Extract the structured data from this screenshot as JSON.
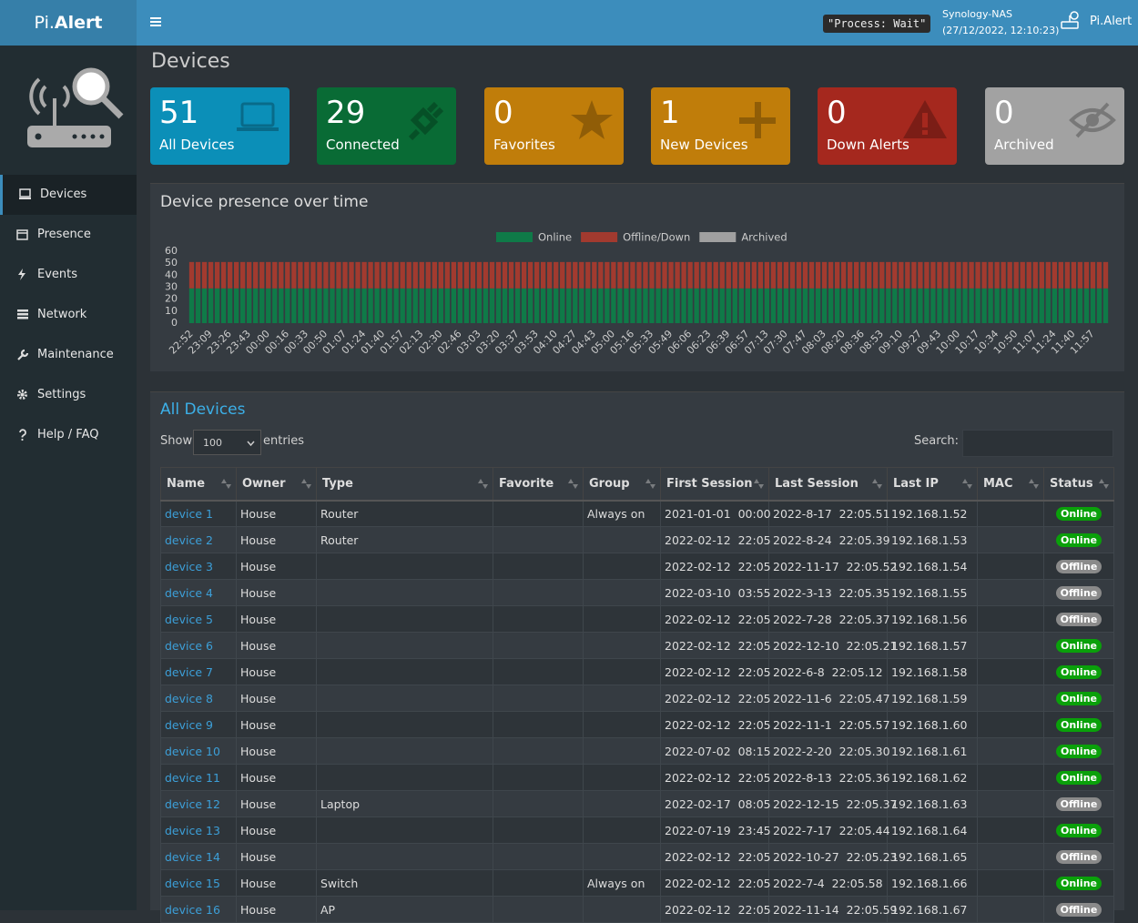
{
  "header": {
    "logo_prefix": "Pi.",
    "logo_suffix": "Alert",
    "process": "\"Process: Wait\"",
    "host": "Synology-NAS",
    "time": "(27/12/2022, 12:10:23)",
    "user": "Pi.Alert"
  },
  "sidebar": {
    "items": [
      "Devices",
      "Presence",
      "Events",
      "Network",
      "Maintenance",
      "Settings",
      "Help / FAQ"
    ]
  },
  "page_title": "Devices",
  "cards": [
    {
      "value": 51,
      "label": "All Devices",
      "color": "#0b8fb8"
    },
    {
      "value": 29,
      "label": "Connected",
      "color": "#096b35"
    },
    {
      "value": 0,
      "label": "Favorites",
      "color": "#c07d0a"
    },
    {
      "value": 1,
      "label": "New Devices",
      "color": "#c07d0a"
    },
    {
      "value": 0,
      "label": "Down Alerts",
      "color": "#a5281e"
    },
    {
      "value": 0,
      "label": "Archived",
      "color": "#a2a2a2"
    }
  ],
  "chart_data": {
    "type": "bar",
    "stacked": true,
    "title": "Device presence over time",
    "categories": [
      "22:52",
      null,
      null,
      "23:09",
      null,
      null,
      "23:26",
      null,
      null,
      "23:43",
      null,
      null,
      "00:00",
      null,
      null,
      "00:16",
      null,
      null,
      "00:33",
      null,
      null,
      "00:50",
      null,
      null,
      "01:07",
      null,
      null,
      "01:24",
      null,
      null,
      "01:40",
      null,
      null,
      "01:57",
      null,
      null,
      "02:13",
      null,
      null,
      "02:30",
      null,
      null,
      "02:46",
      null,
      null,
      "03:03",
      null,
      null,
      "03:20",
      null,
      null,
      "03:37",
      null,
      null,
      "03:53",
      null,
      null,
      "04:10",
      null,
      null,
      "04:27",
      null,
      null,
      "04:43",
      null,
      null,
      "05:00",
      null,
      null,
      "05:16",
      null,
      null,
      "05:33",
      null,
      null,
      "05:49",
      null,
      null,
      "06:06",
      null,
      null,
      "06:23",
      null,
      null,
      "06:39",
      null,
      null,
      "06:57",
      null,
      null,
      "07:13",
      null,
      null,
      "07:30",
      null,
      null,
      "07:47",
      null,
      null,
      "08:03",
      null,
      null,
      "08:20",
      null,
      null,
      "08:36",
      null,
      null,
      "08:53",
      null,
      null,
      "09:10",
      null,
      null,
      "09:27",
      null,
      null,
      "09:43",
      null,
      null,
      "10:00",
      null,
      null,
      "10:17",
      null,
      null,
      "10:34",
      null,
      null,
      "10:50",
      null,
      null,
      "11:07",
      null,
      null,
      "11:24",
      null,
      null,
      "11:40",
      null,
      null,
      "11:57",
      null,
      null
    ],
    "series": [
      {
        "name": "Online",
        "color": "#0f7a48",
        "values": [
          29,
          29,
          29,
          29,
          29,
          29,
          29,
          29,
          29,
          29,
          29,
          29,
          29,
          29,
          29,
          29,
          29,
          29,
          29,
          29,
          29,
          29,
          29,
          29,
          29,
          29,
          29,
          29,
          29,
          29,
          29,
          29,
          29,
          29,
          29,
          29,
          29,
          29,
          29,
          29,
          29,
          29,
          29,
          29,
          29,
          29,
          29,
          29,
          29,
          29,
          29,
          29,
          29,
          29,
          29,
          29,
          29,
          29,
          29,
          29,
          29,
          29,
          29,
          29,
          29,
          29,
          29,
          29,
          29,
          29,
          29,
          29,
          29,
          29,
          29,
          29,
          29,
          29,
          29,
          29,
          29,
          29,
          29,
          29,
          29,
          29,
          29,
          29,
          29,
          29,
          29,
          29,
          29,
          29,
          29,
          29,
          29,
          29,
          29,
          29,
          29,
          29,
          29,
          29,
          29,
          29,
          29,
          29,
          29,
          29,
          29,
          29,
          29,
          29,
          29,
          29,
          29,
          29,
          29,
          29,
          29,
          29,
          29,
          29,
          29,
          29,
          29,
          29,
          29,
          29,
          29,
          29,
          29,
          29,
          29,
          29,
          29,
          29,
          29,
          29,
          29,
          29,
          29,
          29
        ]
      },
      {
        "name": "Offline/Down",
        "color": "#a23a2f",
        "values": [
          22,
          22,
          22,
          22,
          22,
          22,
          22,
          22,
          22,
          22,
          22,
          22,
          22,
          22,
          22,
          22,
          22,
          22,
          22,
          22,
          22,
          22,
          22,
          22,
          22,
          22,
          22,
          22,
          22,
          22,
          22,
          22,
          22,
          22,
          22,
          22,
          22,
          22,
          22,
          22,
          22,
          22,
          22,
          22,
          22,
          22,
          22,
          22,
          22,
          22,
          22,
          22,
          22,
          22,
          22,
          22,
          22,
          22,
          22,
          22,
          22,
          22,
          22,
          22,
          22,
          22,
          22,
          22,
          22,
          22,
          22,
          22,
          22,
          22,
          22,
          22,
          22,
          22,
          22,
          22,
          22,
          22,
          22,
          22,
          22,
          22,
          22,
          22,
          22,
          22,
          22,
          22,
          22,
          22,
          22,
          22,
          22,
          22,
          22,
          22,
          22,
          22,
          22,
          22,
          22,
          22,
          22,
          22,
          22,
          22,
          22,
          22,
          22,
          22,
          22,
          22,
          22,
          22,
          22,
          22,
          22,
          22,
          22,
          22,
          22,
          22,
          22,
          22,
          22,
          22,
          22,
          22,
          22,
          22,
          22,
          22,
          22,
          22,
          22,
          22,
          22,
          22,
          22,
          22
        ]
      },
      {
        "name": "Archived",
        "color": "#a0a0a0",
        "values": [
          0,
          0,
          0,
          0,
          0,
          0,
          0,
          0,
          0,
          0,
          0,
          0,
          0,
          0,
          0,
          0,
          0,
          0,
          0,
          0,
          0,
          0,
          0,
          0,
          0,
          0,
          0,
          0,
          0,
          0,
          0,
          0,
          0,
          0,
          0,
          0,
          0,
          0,
          0,
          0,
          0,
          0,
          0,
          0,
          0,
          0,
          0,
          0,
          0,
          0,
          0,
          0,
          0,
          0,
          0,
          0,
          0,
          0,
          0,
          0,
          0,
          0,
          0,
          0,
          0,
          0,
          0,
          0,
          0,
          0,
          0,
          0,
          0,
          0,
          0,
          0,
          0,
          0,
          0,
          0,
          0,
          0,
          0,
          0,
          0,
          0,
          0,
          0,
          0,
          0,
          0,
          0,
          0,
          0,
          0,
          0,
          0,
          0,
          0,
          0,
          0,
          0,
          0,
          0,
          0,
          0,
          0,
          0,
          0,
          0,
          0,
          0,
          0,
          0,
          0,
          0,
          0,
          0,
          0,
          0,
          0,
          0,
          0,
          0,
          0,
          0,
          0,
          0,
          0,
          0,
          0,
          0,
          0,
          0,
          0,
          0,
          0,
          0,
          0,
          0,
          0,
          0,
          0,
          0
        ]
      }
    ],
    "ylim": [
      0,
      60
    ],
    "yticks": [
      0,
      10,
      20,
      30,
      40,
      50,
      60
    ]
  },
  "table": {
    "title": "All Devices",
    "show": "Show",
    "page_size": "100",
    "entries": "entries",
    "search": "Search:",
    "columns": [
      "Name",
      "Owner",
      "Type",
      "Favorite",
      "Group",
      "First Session",
      "Last Session",
      "Last IP",
      "MAC",
      "Status"
    ],
    "status_styles": {
      "Online": "#0aa00a",
      "Offline": "#8a8a8a"
    },
    "rows": [
      [
        "device 1",
        "House",
        "Router",
        null,
        "Always on",
        "2021-01-01  00:00",
        "2022-8-17  22:05.51",
        "192.168.1.52",
        null,
        "Online"
      ],
      [
        "device 2",
        "House",
        "Router",
        null,
        null,
        "2022-02-12  22:05",
        "2022-8-24  22:05.39",
        "192.168.1.53",
        null,
        "Online"
      ],
      [
        "device 3",
        "House",
        null,
        null,
        null,
        "2022-02-12  22:05",
        "2022-11-17  22:05.52",
        "192.168.1.54",
        null,
        "Offline"
      ],
      [
        "device 4",
        "House",
        null,
        null,
        null,
        "2022-03-10  03:55",
        "2022-3-13  22:05.35",
        "192.168.1.55",
        null,
        "Offline"
      ],
      [
        "device 5",
        "House",
        null,
        null,
        null,
        "2022-02-12  22:05",
        "2022-7-28  22:05.37",
        "192.168.1.56",
        null,
        "Offline"
      ],
      [
        "device 6",
        "House",
        null,
        null,
        null,
        "2022-02-12  22:05",
        "2022-12-10  22:05.21",
        "192.168.1.57",
        null,
        "Online"
      ],
      [
        "device 7",
        "House",
        null,
        null,
        null,
        "2022-02-12  22:05",
        "2022-6-8  22:05.12",
        "192.168.1.58",
        null,
        "Online"
      ],
      [
        "device 8",
        "House",
        null,
        null,
        null,
        "2022-02-12  22:05",
        "2022-11-6  22:05.47",
        "192.168.1.59",
        null,
        "Online"
      ],
      [
        "device 9",
        "House",
        null,
        null,
        null,
        "2022-02-12  22:05",
        "2022-11-1  22:05.57",
        "192.168.1.60",
        null,
        "Online"
      ],
      [
        "device 10",
        "House",
        null,
        null,
        null,
        "2022-07-02  08:15",
        "2022-2-20  22:05.30",
        "192.168.1.61",
        null,
        "Online"
      ],
      [
        "device 11",
        "House",
        null,
        null,
        null,
        "2022-02-12  22:05",
        "2022-8-13  22:05.36",
        "192.168.1.62",
        null,
        "Online"
      ],
      [
        "device 12",
        "House",
        "Laptop",
        null,
        null,
        "2022-02-17  08:05",
        "2022-12-15  22:05.37",
        "192.168.1.63",
        null,
        "Offline"
      ],
      [
        "device 13",
        "House",
        null,
        null,
        null,
        "2022-07-19  23:45",
        "2022-7-17  22:05.44",
        "192.168.1.64",
        null,
        "Online"
      ],
      [
        "device 14",
        "House",
        null,
        null,
        null,
        "2022-02-12  22:05",
        "2022-10-27  22:05.23",
        "192.168.1.65",
        null,
        "Offline"
      ],
      [
        "device 15",
        "House",
        "Switch",
        null,
        "Always on",
        "2022-02-12  22:05",
        "2022-7-4  22:05.58",
        "192.168.1.66",
        null,
        "Online"
      ],
      [
        "device 16",
        "House",
        "AP",
        null,
        null,
        "2022-02-12  22:05",
        "2022-11-14  22:05.59",
        "192.168.1.67",
        null,
        "Offline"
      ]
    ]
  }
}
